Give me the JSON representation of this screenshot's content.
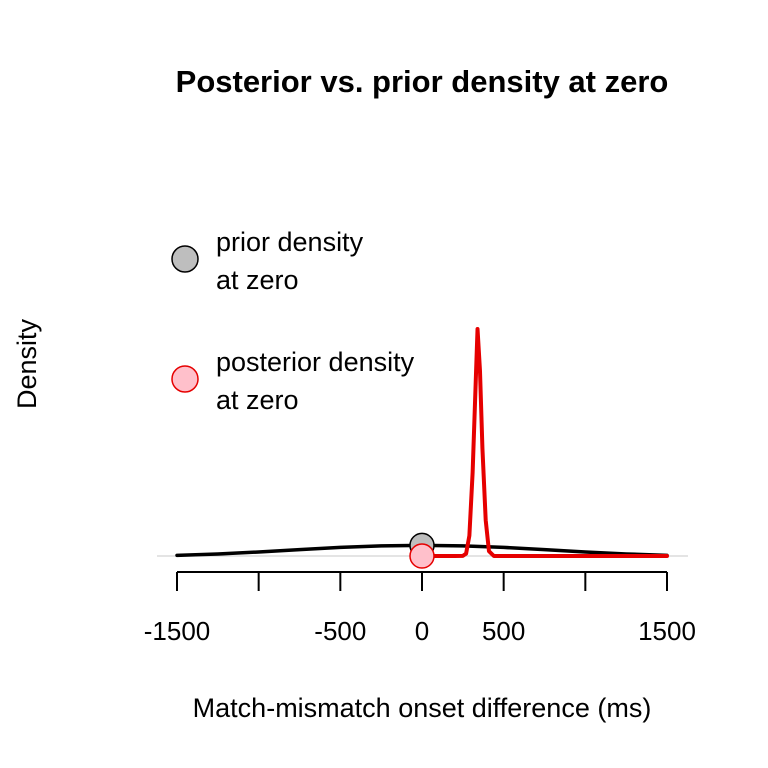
{
  "chart_data": {
    "type": "line",
    "title": "Posterior vs. prior density at zero",
    "xlabel": "Match-mismatch onset difference (ms)",
    "ylabel": "Density",
    "xlim": [
      -1500,
      1500
    ],
    "ylim": [
      0,
      0.00395
    ],
    "x_ticks": [
      -1500,
      -1000,
      -500,
      0,
      500,
      1000,
      1500
    ],
    "x_tick_labels": [
      "-1500",
      "-500",
      "0",
      "500",
      "1500"
    ],
    "series": [
      {
        "name": "prior",
        "color": "#000000",
        "x": [
          -1500,
          -1250,
          -1000,
          -750,
          -500,
          -250,
          0,
          250,
          500,
          750,
          1000,
          1250,
          1500
        ],
        "y": [
          1.1e-05,
          3.4e-05,
          6.7e-05,
          0.000107,
          0.000144,
          0.000169,
          0.000178,
          0.000169,
          0.000144,
          0.000107,
          6.7e-05,
          3.4e-05,
          1.1e-05
        ]
      },
      {
        "name": "posterior",
        "color": "#e60000",
        "x": [
          0,
          200,
          250,
          270,
          290,
          310,
          325,
          340,
          355,
          370,
          390,
          410,
          440,
          1500
        ],
        "y": [
          0,
          0,
          2e-06,
          4e-05,
          0.00034,
          0.0014,
          0.0026,
          0.0038,
          0.0031,
          0.0018,
          0.0006,
          8e-05,
          0,
          0
        ]
      }
    ],
    "points": [
      {
        "name": "prior density at zero",
        "x": 0,
        "y": 0.000178,
        "fill": "#bebebe",
        "stroke": "#000000"
      },
      {
        "name": "posterior density at zero",
        "x": 0,
        "y": 0,
        "fill": "#ffc0cb",
        "stroke": "#e60000"
      }
    ],
    "legend": {
      "position": "top-left",
      "items": [
        {
          "lines": [
            "prior density",
            "at zero"
          ],
          "fill": "#bebebe",
          "stroke": "#000000"
        },
        {
          "lines": [
            "posterior density",
            "at zero"
          ],
          "fill": "#ffc0cb",
          "stroke": "#e60000"
        }
      ]
    },
    "baseline_color": "#c8c8c8"
  }
}
